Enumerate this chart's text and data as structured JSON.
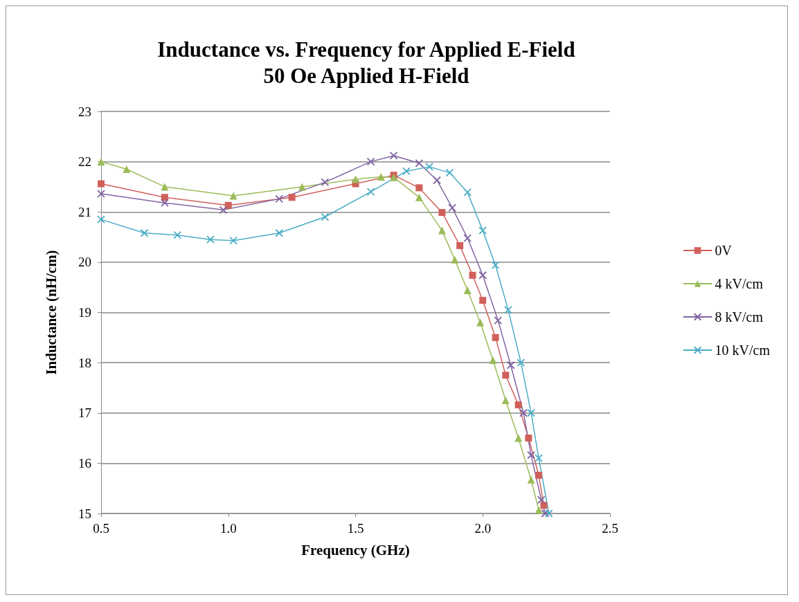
{
  "chart_data": {
    "type": "line",
    "title": "Inductance vs. Frequency for Applied E-Field\n50 Oe Applied H-Field",
    "xlabel": "Frequency (GHz)",
    "ylabel": "Inductance (nH/cm)",
    "xlim": [
      0.5,
      2.5
    ],
    "xticks": [
      {
        "value": 0.5,
        "label": "0.5"
      },
      {
        "value": 1,
        "label": "1.0"
      },
      {
        "value": 1.5,
        "label": "1.5"
      },
      {
        "value": 2,
        "label": "2.0"
      },
      {
        "value": 2.5,
        "label": "2.5"
      }
    ],
    "ylim": [
      15,
      23
    ],
    "yticks": [
      15,
      16,
      17,
      18,
      19,
      20,
      21,
      22,
      23
    ],
    "grid": "y",
    "legend": "right",
    "line_style": "solid",
    "series": [
      {
        "name": "0V",
        "color": "#d0605a",
        "marker": "square",
        "x": [
          0.5,
          0.75,
          1.0,
          1.25,
          1.5,
          1.65,
          1.75,
          1.84,
          1.91,
          1.96,
          2.0,
          2.05,
          2.09,
          2.14,
          2.18,
          2.22,
          2.24
        ],
        "values": [
          21.56,
          21.29,
          21.13,
          21.29,
          21.56,
          21.73,
          21.48,
          20.99,
          20.33,
          19.74,
          19.24,
          18.5,
          17.75,
          17.16,
          16.5,
          15.76,
          15.16
        ]
      },
      {
        "name": "4 kV/cm",
        "color": "#9bbb59",
        "marker": "triangle",
        "x": [
          0.5,
          0.6,
          0.75,
          1.02,
          1.29,
          1.5,
          1.6,
          1.65,
          1.75,
          1.84,
          1.89,
          1.94,
          1.99,
          2.04,
          2.09,
          2.14,
          2.19,
          2.22
        ],
        "values": [
          22.0,
          21.85,
          21.5,
          21.32,
          21.5,
          21.65,
          21.7,
          21.69,
          21.29,
          20.63,
          20.05,
          19.44,
          18.8,
          18.05,
          17.25,
          16.5,
          15.67,
          15.07
        ]
      },
      {
        "name": "8 kV/cm",
        "color": "#8064a2",
        "marker": "cross",
        "x": [
          0.5,
          0.75,
          0.98,
          1.2,
          1.38,
          1.56,
          1.65,
          1.75,
          1.82,
          1.88,
          1.94,
          2.0,
          2.06,
          2.11,
          2.16,
          2.19,
          2.23,
          2.245
        ],
        "values": [
          21.36,
          21.18,
          21.04,
          21.26,
          21.59,
          22.0,
          22.12,
          21.97,
          21.63,
          21.08,
          20.48,
          19.74,
          18.84,
          17.95,
          17.0,
          16.16,
          15.27,
          15.0
        ]
      },
      {
        "name": "10 kV/cm",
        "color": "#4bacc6",
        "marker": "cross",
        "x": [
          0.5,
          0.67,
          0.8,
          0.93,
          1.02,
          1.2,
          1.38,
          1.56,
          1.7,
          1.79,
          1.87,
          1.94,
          2.0,
          2.05,
          2.1,
          2.15,
          2.19,
          2.22,
          2.26
        ],
        "values": [
          20.85,
          20.58,
          20.54,
          20.45,
          20.43,
          20.58,
          20.9,
          21.4,
          21.81,
          21.9,
          21.78,
          21.39,
          20.63,
          19.94,
          19.05,
          18.0,
          17.0,
          16.1,
          15.0
        ]
      }
    ]
  }
}
